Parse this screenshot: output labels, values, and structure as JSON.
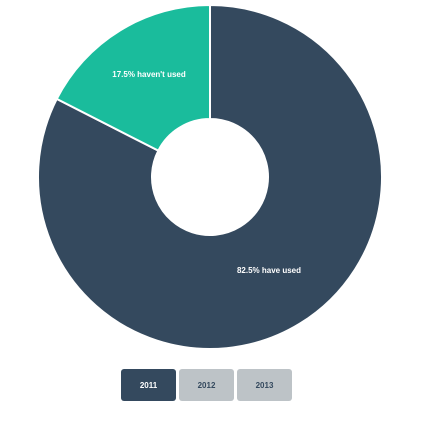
{
  "chart_data": {
    "type": "pie",
    "title": "",
    "slices": [
      {
        "label": "82.5% have used",
        "value": 82.5,
        "color": "#34495e"
      },
      {
        "label": "17.5% haven't used",
        "value": 17.5,
        "color": "#1abc9c"
      }
    ],
    "donut": true
  },
  "tabs": [
    {
      "label": "2011",
      "active": true
    },
    {
      "label": "2012",
      "active": false
    },
    {
      "label": "2013",
      "active": false
    }
  ],
  "colors": {
    "active_tab": "#34495e",
    "inactive_tab": "#bdc3c7"
  }
}
